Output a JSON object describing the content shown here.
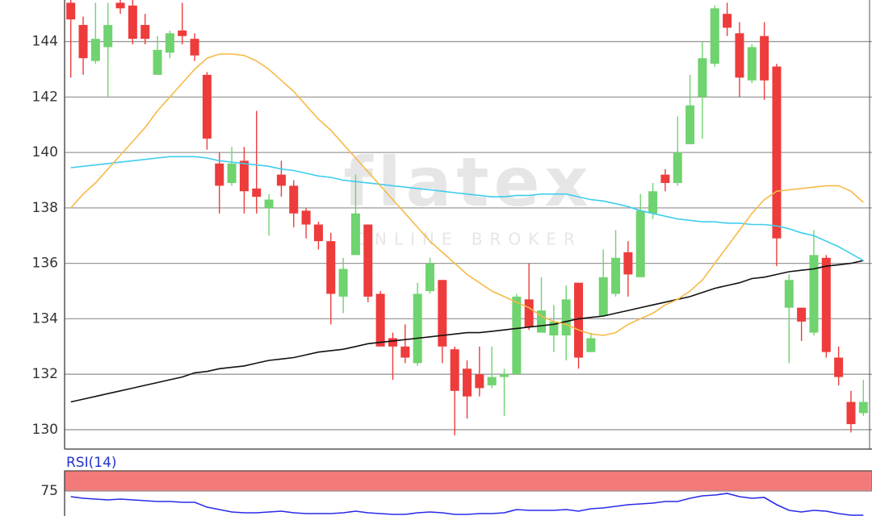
{
  "chart_data": [
    {
      "type": "candlestick",
      "watermark": [
        "flatex",
        "ONLINE BROKER"
      ],
      "ylim": [
        129.3,
        145.5
      ],
      "yticks": [
        130,
        132,
        134,
        136,
        138,
        140,
        142,
        144
      ],
      "grid": true,
      "up_color": "#6fd36f",
      "down_color": "#ee3b3b",
      "open": [
        145.4,
        144.6,
        143.3,
        143.8,
        145.4,
        145.3,
        144.6,
        142.8,
        143.6,
        144.4,
        144.1,
        142.8,
        139.6,
        138.9,
        139.7,
        138.7,
        138.0,
        139.2,
        138.8,
        137.9,
        137.4,
        136.8,
        134.8,
        136.3,
        137.4,
        134.9,
        133.3,
        133.0,
        132.4,
        135.0,
        135.4,
        132.9,
        132.2,
        132.0,
        131.6,
        131.9,
        132.0,
        134.7,
        133.5,
        133.4,
        133.4,
        135.3,
        132.8,
        134.1,
        134.9,
        136.4,
        135.5,
        137.8,
        139.2,
        138.9,
        140.3,
        142.0,
        143.2,
        145.0,
        144.3,
        142.6,
        144.2,
        143.1,
        134.4,
        134.4,
        133.5,
        136.2,
        132.6,
        131.0,
        130.6
      ],
      "high": [
        145.5,
        144.9,
        145.4,
        145.4,
        145.5,
        145.5,
        145.0,
        144.2,
        144.4,
        145.4,
        144.3,
        142.9,
        140.0,
        140.2,
        140.2,
        141.5,
        138.5,
        139.7,
        139.0,
        138.0,
        137.5,
        137.1,
        136.2,
        139.2,
        137.4,
        135.0,
        133.5,
        133.8,
        135.3,
        136.2,
        135.4,
        133.0,
        132.5,
        133.0,
        133.0,
        132.2,
        134.9,
        136.0,
        135.5,
        134.5,
        135.2,
        135.3,
        133.5,
        136.5,
        137.2,
        136.8,
        138.5,
        138.9,
        139.4,
        141.3,
        142.8,
        144.0,
        145.3,
        145.4,
        144.7,
        143.9,
        144.7,
        143.2,
        135.6,
        134.4,
        137.2,
        136.3,
        133.0,
        131.4,
        131.8
      ],
      "low": [
        142.7,
        142.8,
        143.2,
        142.0,
        145.0,
        143.9,
        143.9,
        142.8,
        143.4,
        143.9,
        143.3,
        140.1,
        137.8,
        138.8,
        137.8,
        137.8,
        137.0,
        138.4,
        137.3,
        136.9,
        136.5,
        133.8,
        134.2,
        136.3,
        134.6,
        133.0,
        131.8,
        132.4,
        132.3,
        134.9,
        132.4,
        129.8,
        130.4,
        131.2,
        131.5,
        130.5,
        132.0,
        133.6,
        133.5,
        132.8,
        132.5,
        132.2,
        132.8,
        134.1,
        134.8,
        134.8,
        135.5,
        137.6,
        138.6,
        138.8,
        140.3,
        140.5,
        143.1,
        144.2,
        142.0,
        142.5,
        141.9,
        135.9,
        132.4,
        133.2,
        133.4,
        132.6,
        131.6,
        129.9,
        130.5
      ],
      "close": [
        144.8,
        143.4,
        144.1,
        144.6,
        145.2,
        144.1,
        144.1,
        143.7,
        144.3,
        144.2,
        143.5,
        140.5,
        138.8,
        139.6,
        138.6,
        138.4,
        138.3,
        138.8,
        137.8,
        137.4,
        136.8,
        134.9,
        135.8,
        137.8,
        134.8,
        133.0,
        133.0,
        132.6,
        134.9,
        136.0,
        133.0,
        131.4,
        131.2,
        131.5,
        131.9,
        132.0,
        134.8,
        133.7,
        134.3,
        133.9,
        134.7,
        132.6,
        133.3,
        135.5,
        136.2,
        135.6,
        137.9,
        138.6,
        138.9,
        140.0,
        141.7,
        143.4,
        145.2,
        144.5,
        142.7,
        143.8,
        142.6,
        136.9,
        135.4,
        133.9,
        136.3,
        132.8,
        131.9,
        130.2,
        131.0
      ],
      "series": [
        {
          "color": "#111111",
          "values": [
            131.0,
            131.1,
            131.2,
            131.3,
            131.4,
            131.5,
            131.6,
            131.7,
            131.8,
            131.9,
            132.05,
            132.1,
            132.2,
            132.25,
            132.3,
            132.4,
            132.5,
            132.55,
            132.6,
            132.7,
            132.8,
            132.85,
            132.9,
            133.0,
            133.1,
            133.15,
            133.2,
            133.25,
            133.3,
            133.35,
            133.4,
            133.45,
            133.5,
            133.5,
            133.55,
            133.6,
            133.65,
            133.7,
            133.75,
            133.8,
            133.9,
            134.0,
            134.05,
            134.1,
            134.2,
            134.3,
            134.4,
            134.5,
            134.6,
            134.7,
            134.8,
            134.95,
            135.1,
            135.2,
            135.3,
            135.45,
            135.5,
            135.6,
            135.7,
            135.75,
            135.8,
            135.9,
            135.95,
            136.0,
            136.1
          ]
        },
        {
          "color": "#3fcdee",
          "values": [
            139.45,
            139.5,
            139.55,
            139.6,
            139.65,
            139.7,
            139.75,
            139.8,
            139.85,
            139.85,
            139.85,
            139.8,
            139.7,
            139.65,
            139.6,
            139.55,
            139.5,
            139.4,
            139.35,
            139.25,
            139.15,
            139.1,
            139.0,
            138.95,
            138.9,
            138.85,
            138.8,
            138.75,
            138.7,
            138.65,
            138.6,
            138.55,
            138.5,
            138.45,
            138.4,
            138.4,
            138.45,
            138.45,
            138.5,
            138.5,
            138.5,
            138.4,
            138.3,
            138.25,
            138.15,
            138.05,
            137.9,
            137.8,
            137.7,
            137.6,
            137.55,
            137.5,
            137.5,
            137.45,
            137.45,
            137.4,
            137.4,
            137.35,
            137.25,
            137.1,
            137.0,
            136.8,
            136.6,
            136.35,
            136.1
          ]
        },
        {
          "color": "#f7b947",
          "values": [
            138.0,
            138.5,
            138.9,
            139.4,
            139.9,
            140.4,
            140.9,
            141.5,
            142.0,
            142.5,
            143.0,
            143.4,
            143.55,
            143.55,
            143.5,
            143.3,
            143.0,
            142.6,
            142.2,
            141.7,
            141.2,
            140.8,
            140.3,
            139.8,
            139.3,
            138.8,
            138.3,
            137.8,
            137.3,
            136.8,
            136.4,
            136.0,
            135.6,
            135.3,
            135.0,
            134.8,
            134.6,
            134.4,
            134.1,
            133.9,
            133.8,
            133.6,
            133.45,
            133.4,
            133.5,
            133.8,
            134.0,
            134.2,
            134.5,
            134.7,
            135.0,
            135.4,
            136.0,
            136.6,
            137.2,
            137.8,
            138.3,
            138.6,
            138.65,
            138.7,
            138.75,
            138.8,
            138.8,
            138.6,
            138.2
          ]
        }
      ]
    },
    {
      "type": "line",
      "title": "RSI(14)",
      "title_color": "#2233cc",
      "ylim": [
        44,
        100
      ],
      "yticks": [
        75
      ],
      "band": [
        75,
        100
      ],
      "band_color": "#f27a7a",
      "series": [
        {
          "color": "#2a2ae8",
          "values": [
            68,
            66,
            65,
            64,
            65,
            64,
            63,
            62,
            62,
            61,
            61,
            55,
            52,
            49,
            48,
            48,
            49,
            50,
            48,
            47,
            47,
            47,
            48,
            50,
            48,
            47,
            46,
            46,
            48,
            49,
            48,
            46,
            46,
            47,
            47,
            48,
            52,
            51,
            51,
            51,
            52,
            50,
            53,
            54,
            56,
            58,
            59,
            60,
            62,
            62,
            66,
            69,
            70,
            72,
            68,
            66,
            67,
            58,
            51,
            49,
            51,
            50,
            47,
            45,
            45
          ]
        }
      ]
    }
  ]
}
